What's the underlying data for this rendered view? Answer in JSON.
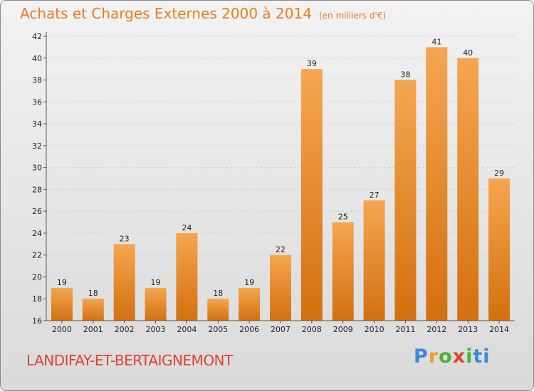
{
  "title": "Achats et Charges Externes 2000 à 2014",
  "subtitle": "(en milliers d'€)",
  "town": "LANDIFAY-ET-BERTAIGNEMONT",
  "logo_text": "Proxiti",
  "colors": {
    "bar": "#f39a3a",
    "bar_dark": "#d36f10",
    "title": "#f07a1a",
    "town": "#e2432b"
  },
  "chart_data": {
    "type": "bar",
    "title": "Achats et Charges Externes 2000 à 2014",
    "subtitle": "(en milliers d'€)",
    "categories": [
      "2000",
      "2001",
      "2002",
      "2003",
      "2004",
      "2005",
      "2006",
      "2007",
      "2008",
      "2009",
      "2010",
      "2011",
      "2012",
      "2013",
      "2014"
    ],
    "values": [
      19,
      18,
      23,
      19,
      24,
      18,
      19,
      22,
      39,
      25,
      27,
      38,
      41,
      40,
      29
    ],
    "ylim": [
      16,
      42
    ],
    "yticks": [
      16,
      18,
      20,
      22,
      24,
      26,
      28,
      30,
      32,
      34,
      36,
      38,
      40,
      42
    ],
    "grid": true,
    "xlabel": "",
    "ylabel": ""
  }
}
